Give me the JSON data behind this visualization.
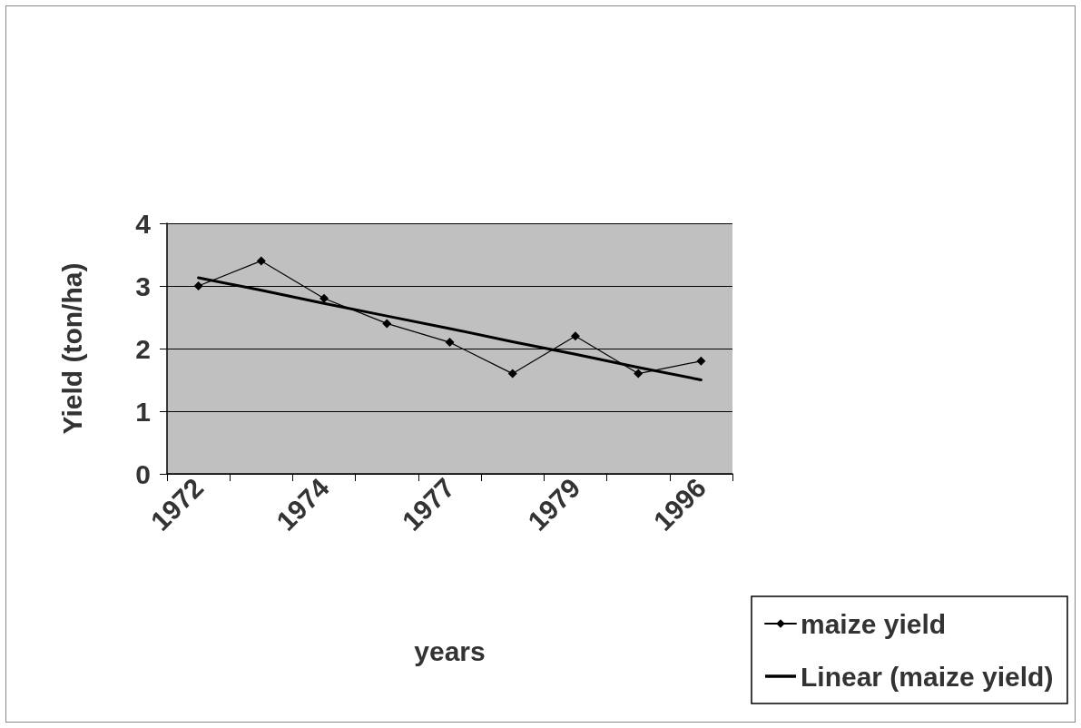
{
  "chart_data": {
    "type": "line",
    "xlabel": "years",
    "ylabel": "Yield (ton/ha)",
    "categories": [
      "1972",
      null,
      "1974",
      null,
      "1977",
      null,
      "1979",
      null,
      "1996"
    ],
    "series": [
      {
        "name": "maize yield",
        "color": "#000000",
        "marker": "diamond",
        "values": [
          3.0,
          3.4,
          2.8,
          2.4,
          2.1,
          1.6,
          2.2,
          1.6,
          1.8
        ]
      },
      {
        "name": "Linear (maize yield)",
        "color": "#000000",
        "marker": "none",
        "values": [
          3.13,
          2.93,
          2.72,
          2.52,
          2.32,
          2.11,
          1.91,
          1.7,
          1.5
        ]
      }
    ],
    "ylim": [
      0,
      4
    ],
    "yticks": [
      0,
      1,
      2,
      3,
      4
    ],
    "grid": "y",
    "legend": "right"
  }
}
